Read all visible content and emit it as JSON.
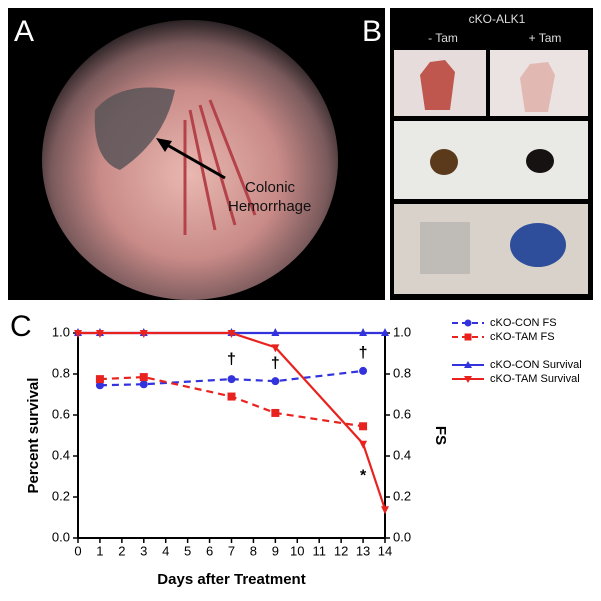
{
  "panels": {
    "a": {
      "label": "A",
      "annotation": "Colonic\nHemorrhage"
    },
    "b": {
      "label": "B",
      "title": "cKO-ALK1",
      "columns": [
        "- Tam",
        "+ Tam"
      ]
    },
    "c": {
      "label": "C"
    }
  },
  "chart_data": {
    "type": "line",
    "x_label": "Days after Treatment",
    "y_label": "Percent survival",
    "y2_label": "FS",
    "xlim": [
      0,
      14
    ],
    "xticks": [
      0,
      1,
      2,
      3,
      4,
      5,
      6,
      7,
      8,
      9,
      10,
      11,
      12,
      13,
      14
    ],
    "ylim": [
      0,
      1
    ],
    "yticks": [
      {
        "value": 0,
        "label": "0.0"
      },
      {
        "value": 0.2,
        "label": "0.2"
      },
      {
        "value": 0.4,
        "label": "0.4"
      },
      {
        "value": 0.6,
        "label": "0.6"
      },
      {
        "value": 0.8,
        "label": "0.8"
      },
      {
        "value": 1,
        "label": "1.0"
      }
    ],
    "y2lim": [
      0,
      1
    ],
    "y2ticks": [
      {
        "value": 0,
        "label": "0.0"
      },
      {
        "value": 0.2,
        "label": "0.2"
      },
      {
        "value": 0.4,
        "label": "0.4"
      },
      {
        "value": 0.6,
        "label": "0.6"
      },
      {
        "value": 0.8,
        "label": "0.8"
      },
      {
        "value": 1,
        "label": "1.0"
      }
    ],
    "series": [
      {
        "name": "cKO-CON FS",
        "color": "#3333dd",
        "axis": "y2",
        "line_style": "dashed",
        "marker": "circle",
        "x": [
          1,
          3,
          7,
          9,
          13
        ],
        "values": [
          0.745,
          0.75,
          0.775,
          0.765,
          0.815
        ]
      },
      {
        "name": "cKO-TAM FS",
        "color": "#e8231f",
        "axis": "y2",
        "line_style": "dashed",
        "marker": "square",
        "x": [
          1,
          3,
          7,
          9,
          13
        ],
        "values": [
          0.775,
          0.785,
          0.69,
          0.61,
          0.545
        ]
      },
      {
        "name": "cKO-CON Survival",
        "color": "#3333dd",
        "line_style": "solid",
        "marker": "triangle",
        "x": [
          0,
          1,
          3,
          7,
          9,
          13,
          14
        ],
        "values": [
          1,
          1,
          1,
          1,
          1,
          1,
          1
        ]
      },
      {
        "name": "cKO-TAM Survival",
        "color": "#e8231f",
        "line_style": "solid",
        "marker": "triangle-down",
        "x": [
          0,
          1,
          3,
          7,
          9,
          13,
          14
        ],
        "values": [
          1,
          1,
          1,
          1,
          0.93,
          0.46,
          0.14
        ]
      }
    ],
    "annotations": [
      {
        "text": "†",
        "x": 7,
        "y": 0.87
      },
      {
        "text": "†",
        "x": 9,
        "y": 0.85
      },
      {
        "text": "†",
        "x": 13,
        "y": 0.9
      },
      {
        "text": "*",
        "x": 13,
        "y": 0.3
      }
    ]
  }
}
